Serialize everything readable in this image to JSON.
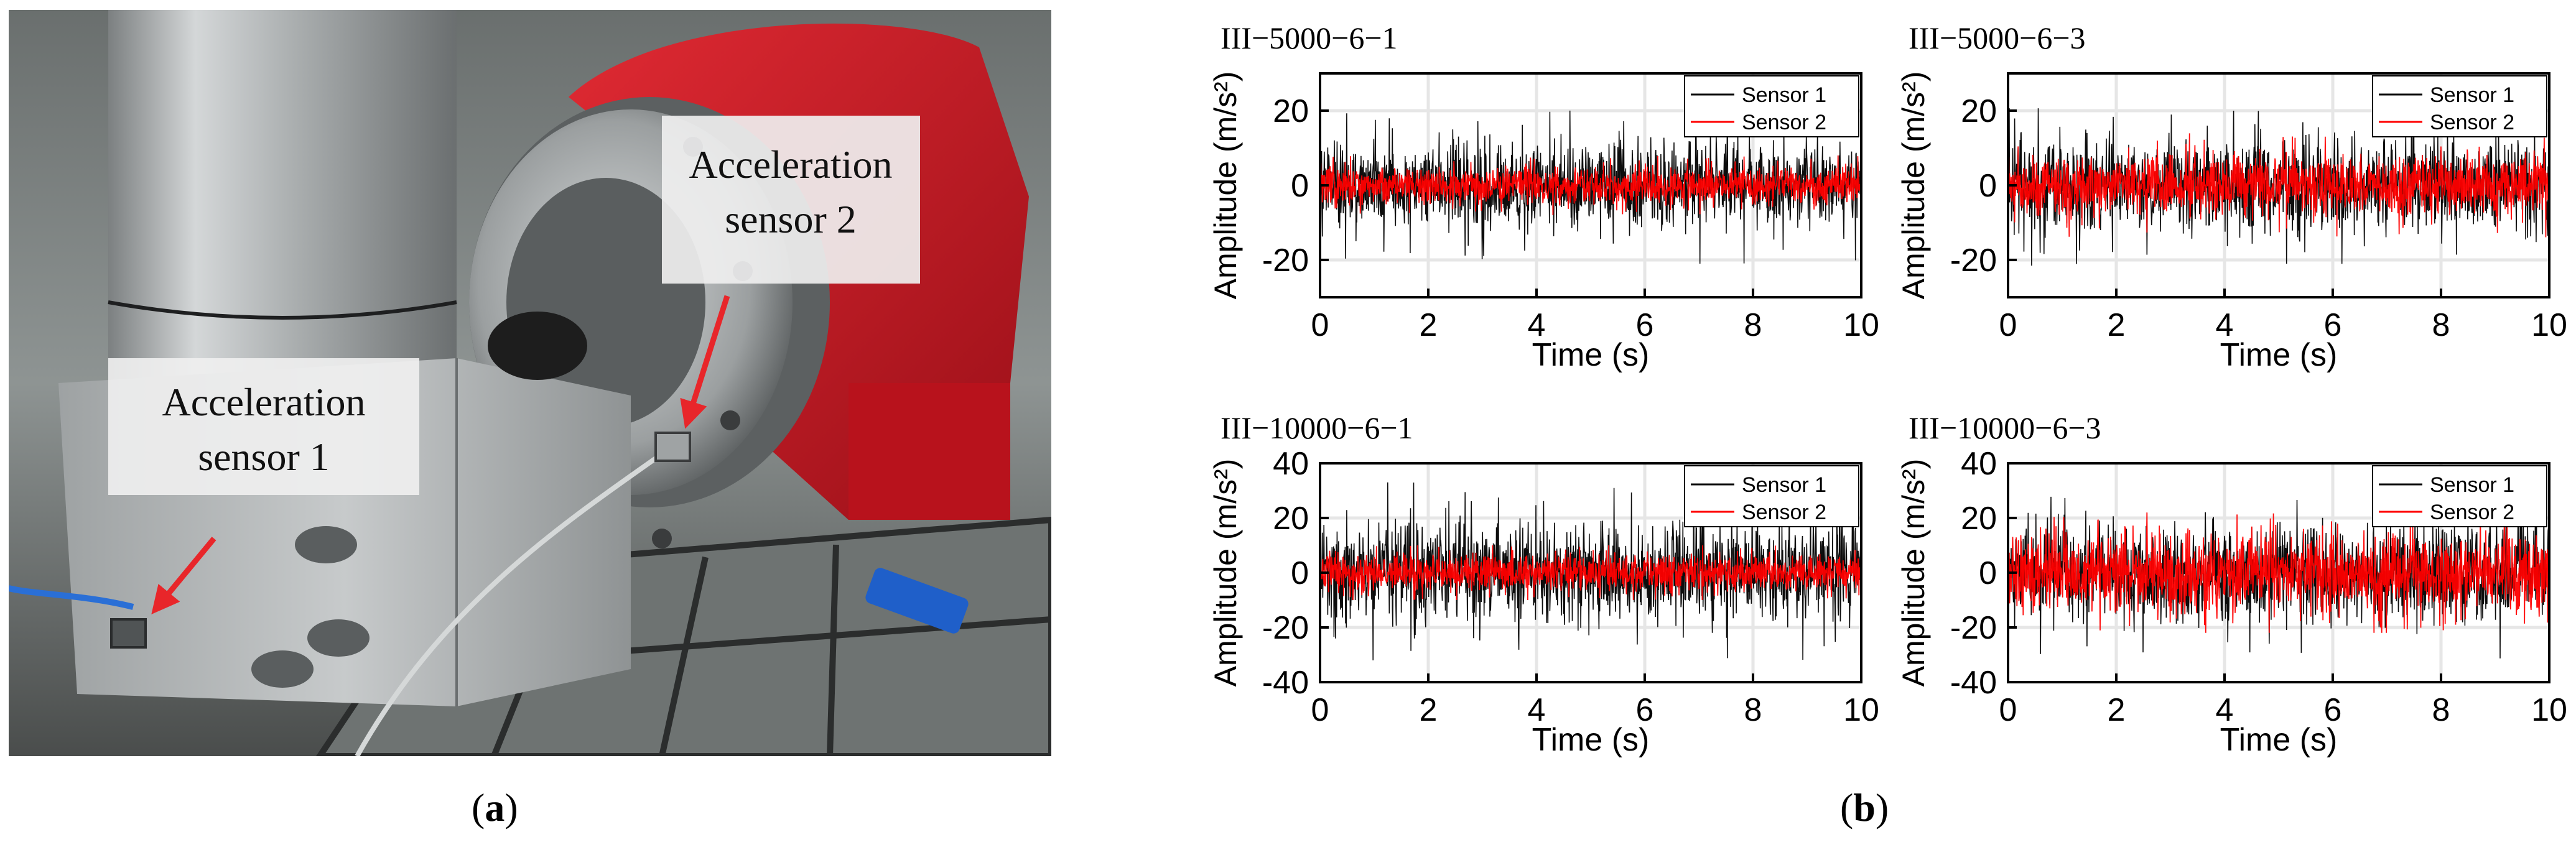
{
  "panel_a": {
    "label_open": "(",
    "label_letter": "a",
    "label_close": ")",
    "annotations": [
      {
        "lines": [
          "Acceleration",
          "sensor 1"
        ]
      },
      {
        "lines": [
          "Acceleration",
          "sensor 2"
        ]
      }
    ],
    "colors": {
      "arrow": "#e8262a",
      "robot_body": "#c4141f",
      "steel": "#b9bcbd"
    }
  },
  "panel_b": {
    "label_open": "(",
    "label_letter": "b",
    "label_close": ")"
  },
  "chart_data": [
    {
      "type": "line",
      "title": "III−5000−6−1",
      "xlabel": "Time (s)",
      "ylabel": "Amplitude (m/s²)",
      "xlim": [
        0,
        10
      ],
      "ylim": [
        -30,
        30
      ],
      "xticks": [
        0,
        2,
        4,
        6,
        8,
        10
      ],
      "yticks": [
        -20,
        0,
        20
      ],
      "grid": true,
      "legend_position": "top-right",
      "series": [
        {
          "name": "Sensor 1",
          "color": "#000000",
          "std": 5.5,
          "peak": 21
        },
        {
          "name": "Sensor 2",
          "color": "#ff0000",
          "std": 2.5,
          "peak": 8
        }
      ]
    },
    {
      "type": "line",
      "title": "III−5000−6−3",
      "xlabel": "Time (s)",
      "ylabel": "Amplitude (m/s²)",
      "xlim": [
        0,
        10
      ],
      "ylim": [
        -30,
        30
      ],
      "xticks": [
        0,
        2,
        4,
        6,
        8,
        10
      ],
      "yticks": [
        -20,
        0,
        20
      ],
      "grid": true,
      "legend_position": "top-right",
      "series": [
        {
          "name": "Sensor 1",
          "color": "#000000",
          "std": 6,
          "peak": 22
        },
        {
          "name": "Sensor 2",
          "color": "#ff0000",
          "std": 4,
          "peak": 14
        }
      ]
    },
    {
      "type": "line",
      "title": "III−10000−6−1",
      "xlabel": "Time (s)",
      "ylabel": "Amplitude (m/s²)",
      "xlim": [
        0,
        10
      ],
      "ylim": [
        -40,
        40
      ],
      "xticks": [
        0,
        2,
        4,
        6,
        8,
        10
      ],
      "yticks": [
        -40,
        -20,
        0,
        20,
        40
      ],
      "grid": true,
      "legend_position": "top-right",
      "series": [
        {
          "name": "Sensor 1",
          "color": "#000000",
          "std": 9,
          "peak": 33
        },
        {
          "name": "Sensor 2",
          "color": "#ff0000",
          "std": 3.5,
          "peak": 10
        }
      ]
    },
    {
      "type": "line",
      "title": "III−10000−6−3",
      "xlabel": "Time (s)",
      "ylabel": "Amplitude (m/s²)",
      "xlim": [
        0,
        10
      ],
      "ylim": [
        -40,
        40
      ],
      "xticks": [
        0,
        2,
        4,
        6,
        8,
        10
      ],
      "yticks": [
        -40,
        -20,
        0,
        20,
        40
      ],
      "grid": true,
      "legend_position": "top-right",
      "series": [
        {
          "name": "Sensor 1",
          "color": "#000000",
          "std": 9,
          "peak": 33
        },
        {
          "name": "Sensor 2",
          "color": "#ff0000",
          "std": 7,
          "peak": 22
        }
      ]
    }
  ]
}
